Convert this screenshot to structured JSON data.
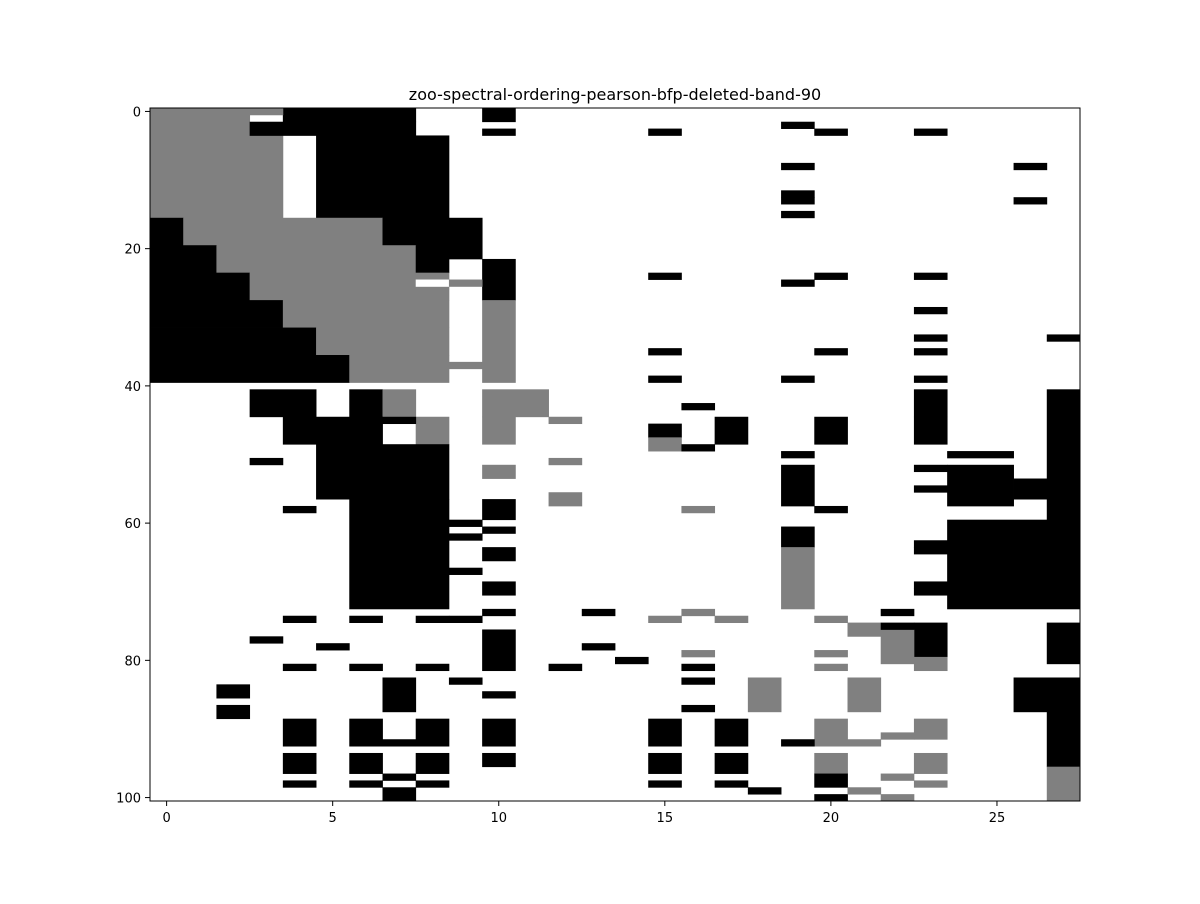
{
  "chart_data": {
    "type": "heatmap",
    "title": "zoo-spectral-ordering-pearson-bfp-deleted-band-90",
    "xlabel": "",
    "ylabel": "",
    "n_cols": 28,
    "n_rows": 101,
    "xlim": [
      -0.5,
      27.5
    ],
    "ylim": [
      100.5,
      -0.5
    ],
    "x_ticks": [
      0,
      5,
      10,
      15,
      20,
      25
    ],
    "y_ticks": [
      0,
      20,
      40,
      60,
      80,
      100
    ],
    "grid": false,
    "legend": "none",
    "value_colors": {
      "0": "#ffffff",
      "1": "#808080",
      "2": "#000000"
    },
    "value_meaning": {
      "0": "absent",
      "1": "deleted-band",
      "2": "present"
    },
    "cells": [
      {
        "r": [
          0,
          0
        ],
        "c": [
          0,
          2
        ],
        "v": 1
      },
      {
        "r": [
          1,
          1
        ],
        "c": [
          0,
          2
        ],
        "v": 1
      },
      {
        "r": [
          2,
          3
        ],
        "c": [
          0,
          2
        ],
        "v": 1
      },
      {
        "r": [
          4,
          15
        ],
        "c": [
          0,
          3
        ],
        "v": 1
      },
      {
        "r": [
          0,
          1
        ],
        "c": [
          4,
          7
        ],
        "v": 2
      },
      {
        "r": [
          2,
          3
        ],
        "c": [
          3,
          7
        ],
        "v": 2
      },
      {
        "r": [
          4,
          15
        ],
        "c": [
          5,
          8
        ],
        "v": 2
      },
      {
        "r": [
          16,
          19
        ],
        "c": [
          0,
          0
        ],
        "v": 2
      },
      {
        "r": [
          16,
          19
        ],
        "c": [
          1,
          6
        ],
        "v": 1
      },
      {
        "r": [
          16,
          19
        ],
        "c": [
          7,
          8
        ],
        "v": 2
      },
      {
        "r": [
          20,
          23
        ],
        "c": [
          0,
          1
        ],
        "v": 2
      },
      {
        "r": [
          20,
          23
        ],
        "c": [
          2,
          7
        ],
        "v": 1
      },
      {
        "r": [
          20,
          23
        ],
        "c": [
          8,
          8
        ],
        "v": 2
      },
      {
        "r": [
          24,
          27
        ],
        "c": [
          0,
          2
        ],
        "v": 2
      },
      {
        "r": [
          24,
          27
        ],
        "c": [
          3,
          8
        ],
        "v": 1
      },
      {
        "r": [
          28,
          31
        ],
        "c": [
          0,
          3
        ],
        "v": 2
      },
      {
        "r": [
          28,
          31
        ],
        "c": [
          4,
          8
        ],
        "v": 1
      },
      {
        "r": [
          32,
          35
        ],
        "c": [
          0,
          4
        ],
        "v": 2
      },
      {
        "r": [
          32,
          35
        ],
        "c": [
          5,
          8
        ],
        "v": 1
      },
      {
        "r": [
          36,
          39
        ],
        "c": [
          0,
          5
        ],
        "v": 2
      },
      {
        "r": [
          36,
          39
        ],
        "c": [
          6,
          8
        ],
        "v": 1
      },
      {
        "r": [
          41,
          44
        ],
        "c": [
          3,
          4
        ],
        "v": 2
      },
      {
        "r": [
          41,
          44
        ],
        "c": [
          6,
          6
        ],
        "v": 2
      },
      {
        "r": [
          41,
          44
        ],
        "c": [
          7,
          7
        ],
        "v": 1
      },
      {
        "r": [
          45,
          48
        ],
        "c": [
          4,
          6
        ],
        "v": 2
      },
      {
        "r": [
          45,
          48
        ],
        "c": [
          8,
          8
        ],
        "v": 1
      },
      {
        "r": [
          49,
          56
        ],
        "c": [
          5,
          8
        ],
        "v": 2
      },
      {
        "r": [
          57,
          72
        ],
        "c": [
          6,
          8
        ],
        "v": 2
      },
      {
        "r": [
          0,
          1
        ],
        "c": [
          10,
          10
        ],
        "v": 2
      },
      {
        "r": [
          22,
          27
        ],
        "c": [
          10,
          10
        ],
        "v": 2
      },
      {
        "r": [
          28,
          39
        ],
        "c": [
          10,
          10
        ],
        "v": 1
      },
      {
        "r": [
          41,
          44
        ],
        "c": [
          10,
          11
        ],
        "v": 1
      },
      {
        "r": [
          45,
          48
        ],
        "c": [
          10,
          10
        ],
        "v": 1
      },
      {
        "r": [
          52,
          53
        ],
        "c": [
          10,
          10
        ],
        "v": 1
      },
      {
        "r": [
          57,
          59
        ],
        "c": [
          10,
          10
        ],
        "v": 2
      },
      {
        "r": [
          64,
          65
        ],
        "c": [
          10,
          10
        ],
        "v": 2
      },
      {
        "r": [
          69,
          70
        ],
        "c": [
          10,
          10
        ],
        "v": 2
      },
      {
        "r": [
          76,
          81
        ],
        "c": [
          10,
          10
        ],
        "v": 2
      },
      {
        "r": [
          89,
          92
        ],
        "c": [
          10,
          10
        ],
        "v": 2
      },
      {
        "r": [
          94,
          95
        ],
        "c": [
          10,
          10
        ],
        "v": 2
      },
      {
        "r": [
          16,
          21
        ],
        "c": [
          9,
          9
        ],
        "v": 2
      },
      {
        "r": [
          56,
          57
        ],
        "c": [
          12,
          12
        ],
        "v": 1
      },
      {
        "r": [
          46,
          47
        ],
        "c": [
          15,
          15
        ],
        "v": 2
      },
      {
        "r": [
          48,
          49
        ],
        "c": [
          15,
          15
        ],
        "v": 1
      },
      {
        "r": [
          45,
          48
        ],
        "c": [
          17,
          17
        ],
        "v": 2
      },
      {
        "r": [
          45,
          48
        ],
        "c": [
          20,
          20
        ],
        "v": 2
      },
      {
        "r": [
          52,
          57
        ],
        "c": [
          19,
          19
        ],
        "v": 2
      },
      {
        "r": [
          61,
          63
        ],
        "c": [
          19,
          19
        ],
        "v": 2
      },
      {
        "r": [
          64,
          72
        ],
        "c": [
          19,
          19
        ],
        "v": 1
      },
      {
        "r": [
          41,
          44
        ],
        "c": [
          23,
          23
        ],
        "v": 2
      },
      {
        "r": [
          45,
          48
        ],
        "c": [
          23,
          23
        ],
        "v": 2
      },
      {
        "r": [
          50,
          50
        ],
        "c": [
          24,
          25
        ],
        "v": 2
      },
      {
        "r": [
          52,
          57
        ],
        "c": [
          24,
          25
        ],
        "v": 2
      },
      {
        "r": [
          54,
          56
        ],
        "c": [
          26,
          27
        ],
        "v": 2
      },
      {
        "r": [
          41,
          53
        ],
        "c": [
          27,
          27
        ],
        "v": 2
      },
      {
        "r": [
          57,
          59
        ],
        "c": [
          27,
          27
        ],
        "v": 2
      },
      {
        "r": [
          60,
          72
        ],
        "c": [
          24,
          27
        ],
        "v": 2
      },
      {
        "r": [
          75,
          80
        ],
        "c": [
          27,
          27
        ],
        "v": 2
      },
      {
        "r": [
          75,
          79
        ],
        "c": [
          23,
          23
        ],
        "v": 2
      },
      {
        "r": [
          80,
          81
        ],
        "c": [
          23,
          23
        ],
        "v": 1
      },
      {
        "r": [
          76,
          80
        ],
        "c": [
          22,
          22
        ],
        "v": 1
      },
      {
        "r": [
          75,
          76
        ],
        "c": [
          21,
          21
        ],
        "v": 1
      },
      {
        "r": [
          83,
          87
        ],
        "c": [
          26,
          27
        ],
        "v": 2
      },
      {
        "r": [
          88,
          95
        ],
        "c": [
          27,
          27
        ],
        "v": 2
      },
      {
        "r": [
          96,
          100
        ],
        "c": [
          27,
          27
        ],
        "v": 1
      },
      {
        "r": [
          83,
          87
        ],
        "c": [
          18,
          18
        ],
        "v": 1
      },
      {
        "r": [
          83,
          87
        ],
        "c": [
          21,
          21
        ],
        "v": 1
      },
      {
        "r": [
          89,
          92
        ],
        "c": [
          4,
          4
        ],
        "v": 2
      },
      {
        "r": [
          89,
          92
        ],
        "c": [
          6,
          6
        ],
        "v": 2
      },
      {
        "r": [
          89,
          92
        ],
        "c": [
          8,
          8
        ],
        "v": 2
      },
      {
        "r": [
          94,
          96
        ],
        "c": [
          4,
          4
        ],
        "v": 2
      },
      {
        "r": [
          94,
          96
        ],
        "c": [
          6,
          6
        ],
        "v": 2
      },
      {
        "r": [
          94,
          96
        ],
        "c": [
          8,
          8
        ],
        "v": 2
      },
      {
        "r": [
          83,
          87
        ],
        "c": [
          7,
          7
        ],
        "v": 2
      },
      {
        "r": [
          99,
          100
        ],
        "c": [
          7,
          7
        ],
        "v": 2
      },
      {
        "r": [
          89,
          92
        ],
        "c": [
          15,
          15
        ],
        "v": 2
      },
      {
        "r": [
          94,
          96
        ],
        "c": [
          15,
          15
        ],
        "v": 2
      },
      {
        "r": [
          89,
          92
        ],
        "c": [
          17,
          17
        ],
        "v": 2
      },
      {
        "r": [
          94,
          96
        ],
        "c": [
          17,
          17
        ],
        "v": 2
      },
      {
        "r": [
          89,
          92
        ],
        "c": [
          20,
          20
        ],
        "v": 1
      },
      {
        "r": [
          94,
          96
        ],
        "c": [
          20,
          20
        ],
        "v": 1
      },
      {
        "r": [
          97,
          98
        ],
        "c": [
          20,
          20
        ],
        "v": 2
      },
      {
        "r": [
          100,
          100
        ],
        "c": [
          20,
          20
        ],
        "v": 2
      },
      {
        "r": [
          89,
          91
        ],
        "c": [
          23,
          23
        ],
        "v": 1
      },
      {
        "r": [
          94,
          96
        ],
        "c": [
          23,
          23
        ],
        "v": 1
      },
      {
        "r": [
          84,
          85
        ],
        "c": [
          2,
          2
        ],
        "v": 2
      },
      {
        "r": [
          87,
          88
        ],
        "c": [
          2,
          2
        ],
        "v": 2
      }
    ],
    "row_cells": [
      {
        "r": 0,
        "c": 3,
        "v": 1
      },
      {
        "r": 2,
        "c": 19,
        "v": 2
      },
      {
        "r": 3,
        "c": 10,
        "v": 2
      },
      {
        "r": 3,
        "c": 15,
        "v": 2
      },
      {
        "r": 3,
        "c": 20,
        "v": 2
      },
      {
        "r": 3,
        "c": 23,
        "v": 2
      },
      {
        "r": 8,
        "c": 19,
        "v": 2
      },
      {
        "r": 8,
        "c": 26,
        "v": 2
      },
      {
        "r": 12,
        "c": 19,
        "v": 2
      },
      {
        "r": 13,
        "c": 19,
        "v": 2
      },
      {
        "r": 13,
        "c": 26,
        "v": 2
      },
      {
        "r": 15,
        "c": 19,
        "v": 2
      },
      {
        "r": 18,
        "c": 8,
        "v": 2
      },
      {
        "r": 24,
        "c": 15,
        "v": 2
      },
      {
        "r": 24,
        "c": 20,
        "v": 2
      },
      {
        "r": 24,
        "c": 23,
        "v": 2
      },
      {
        "r": 25,
        "c": 8,
        "v": 0
      },
      {
        "r": 25,
        "c": 9,
        "v": 1
      },
      {
        "r": 25,
        "c": 19,
        "v": 2
      },
      {
        "r": 29,
        "c": 23,
        "v": 2
      },
      {
        "r": 33,
        "c": 23,
        "v": 2
      },
      {
        "r": 33,
        "c": 27,
        "v": 2
      },
      {
        "r": 35,
        "c": 15,
        "v": 2
      },
      {
        "r": 35,
        "c": 20,
        "v": 2
      },
      {
        "r": 35,
        "c": 23,
        "v": 2
      },
      {
        "r": 37,
        "c": 9,
        "v": 1
      },
      {
        "r": 39,
        "c": 15,
        "v": 2
      },
      {
        "r": 39,
        "c": 19,
        "v": 2
      },
      {
        "r": 39,
        "c": 23,
        "v": 2
      },
      {
        "r": 43,
        "c": 16,
        "v": 2
      },
      {
        "r": 45,
        "c": 12,
        "v": 1
      },
      {
        "r": 45,
        "c": 7,
        "v": 2
      },
      {
        "r": 49,
        "c": 16,
        "v": 2
      },
      {
        "r": 50,
        "c": 19,
        "v": 2
      },
      {
        "r": 51,
        "c": 3,
        "v": 2
      },
      {
        "r": 51,
        "c": 12,
        "v": 1
      },
      {
        "r": 52,
        "c": 23,
        "v": 2
      },
      {
        "r": 55,
        "c": 23,
        "v": 2
      },
      {
        "r": 58,
        "c": 4,
        "v": 2
      },
      {
        "r": 58,
        "c": 16,
        "v": 1
      },
      {
        "r": 58,
        "c": 20,
        "v": 2
      },
      {
        "r": 60,
        "c": 9,
        "v": 2
      },
      {
        "r": 61,
        "c": 10,
        "v": 2
      },
      {
        "r": 62,
        "c": 9,
        "v": 2
      },
      {
        "r": 63,
        "c": 23,
        "v": 2
      },
      {
        "r": 64,
        "c": 23,
        "v": 2
      },
      {
        "r": 67,
        "c": 9,
        "v": 2
      },
      {
        "r": 69,
        "c": 23,
        "v": 2
      },
      {
        "r": 70,
        "c": 23,
        "v": 2
      },
      {
        "r": 73,
        "c": 10,
        "v": 2
      },
      {
        "r": 73,
        "c": 13,
        "v": 2
      },
      {
        "r": 73,
        "c": 16,
        "v": 1
      },
      {
        "r": 73,
        "c": 22,
        "v": 2
      },
      {
        "r": 74,
        "c": 4,
        "v": 2
      },
      {
        "r": 74,
        "c": 6,
        "v": 2
      },
      {
        "r": 74,
        "c": 8,
        "v": 2
      },
      {
        "r": 74,
        "c": 9,
        "v": 2
      },
      {
        "r": 74,
        "c": 15,
        "v": 1
      },
      {
        "r": 74,
        "c": 17,
        "v": 1
      },
      {
        "r": 74,
        "c": 20,
        "v": 1
      },
      {
        "r": 75,
        "c": 22,
        "v": 2
      },
      {
        "r": 77,
        "c": 3,
        "v": 2
      },
      {
        "r": 78,
        "c": 5,
        "v": 2
      },
      {
        "r": 78,
        "c": 13,
        "v": 2
      },
      {
        "r": 79,
        "c": 16,
        "v": 1
      },
      {
        "r": 79,
        "c": 20,
        "v": 1
      },
      {
        "r": 80,
        "c": 14,
        "v": 2
      },
      {
        "r": 81,
        "c": 4,
        "v": 2
      },
      {
        "r": 81,
        "c": 6,
        "v": 2
      },
      {
        "r": 81,
        "c": 8,
        "v": 2
      },
      {
        "r": 81,
        "c": 12,
        "v": 2
      },
      {
        "r": 81,
        "c": 16,
        "v": 2
      },
      {
        "r": 81,
        "c": 20,
        "v": 1
      },
      {
        "r": 83,
        "c": 9,
        "v": 2
      },
      {
        "r": 83,
        "c": 16,
        "v": 2
      },
      {
        "r": 85,
        "c": 10,
        "v": 2
      },
      {
        "r": 87,
        "c": 16,
        "v": 2
      },
      {
        "r": 92,
        "c": 7,
        "v": 2
      },
      {
        "r": 92,
        "c": 19,
        "v": 2
      },
      {
        "r": 92,
        "c": 21,
        "v": 1
      },
      {
        "r": 91,
        "c": 22,
        "v": 1
      },
      {
        "r": 97,
        "c": 7,
        "v": 2
      },
      {
        "r": 97,
        "c": 22,
        "v": 1
      },
      {
        "r": 98,
        "c": 4,
        "v": 2
      },
      {
        "r": 98,
        "c": 6,
        "v": 2
      },
      {
        "r": 98,
        "c": 8,
        "v": 2
      },
      {
        "r": 98,
        "c": 15,
        "v": 2
      },
      {
        "r": 98,
        "c": 17,
        "v": 2
      },
      {
        "r": 98,
        "c": 23,
        "v": 1
      },
      {
        "r": 99,
        "c": 18,
        "v": 2
      },
      {
        "r": 99,
        "c": 21,
        "v": 1
      },
      {
        "r": 100,
        "c": 22,
        "v": 1
      }
    ]
  }
}
